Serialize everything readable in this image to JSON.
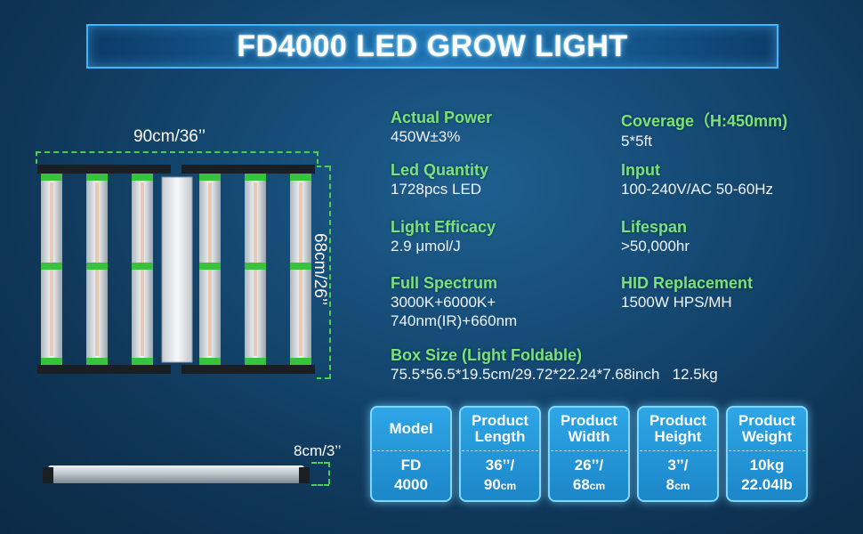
{
  "title": "FD4000 LED GROW LIGHT",
  "dimensions": {
    "width_label": "90cm/36’’",
    "height_label": "68cm/26’’",
    "profile_label": "8cm/3’’"
  },
  "specs": {
    "actual_power": {
      "label": "Actual Power",
      "value": "450W±3%"
    },
    "coverage": {
      "label": "Coverage（H:450mm)",
      "value": "5*5ft"
    },
    "led_quantity": {
      "label": "Led Quantity",
      "value": "1728pcs LED"
    },
    "input": {
      "label": "Input",
      "value": "100-240V/AC 50-60Hz"
    },
    "light_efficacy": {
      "label": "Light Efficacy",
      "value": "2.9 μmol/J"
    },
    "lifespan": {
      "label": "Lifespan",
      "value": ">50,000hr"
    },
    "full_spectrum": {
      "label": "Full Spectrum",
      "value_line1": "3000K+6000K+",
      "value_line2": "740nm(IR)+660nm"
    },
    "hid_replacement": {
      "label": "HID Replacement",
      "value": "1500W HPS/MH"
    },
    "box_size": {
      "label": "Box Size (Light Foldable)",
      "value": "75.5*56.5*19.5cm/29.72*22.24*7.68inch   12.5kg"
    }
  },
  "cards": [
    {
      "head": "Model",
      "line1": "FD",
      "line2": "4000",
      "line2_unit": ""
    },
    {
      "head": "Product Length",
      "line1": "36’’/",
      "line2": "90",
      "line2_unit": "cm"
    },
    {
      "head": "Product Width",
      "line1": "26’’/",
      "line2": "68",
      "line2_unit": "cm"
    },
    {
      "head": "Product Height",
      "line1": "3’’/",
      "line2": "8",
      "line2_unit": "cm"
    },
    {
      "head": "Product Weight",
      "line1": "10kg",
      "line2": "22.04lb",
      "line2_unit": ""
    }
  ],
  "colors": {
    "accent_green": "#7ae27a",
    "card_blue": "#1b86c8",
    "title_border": "#3fb6ff"
  }
}
